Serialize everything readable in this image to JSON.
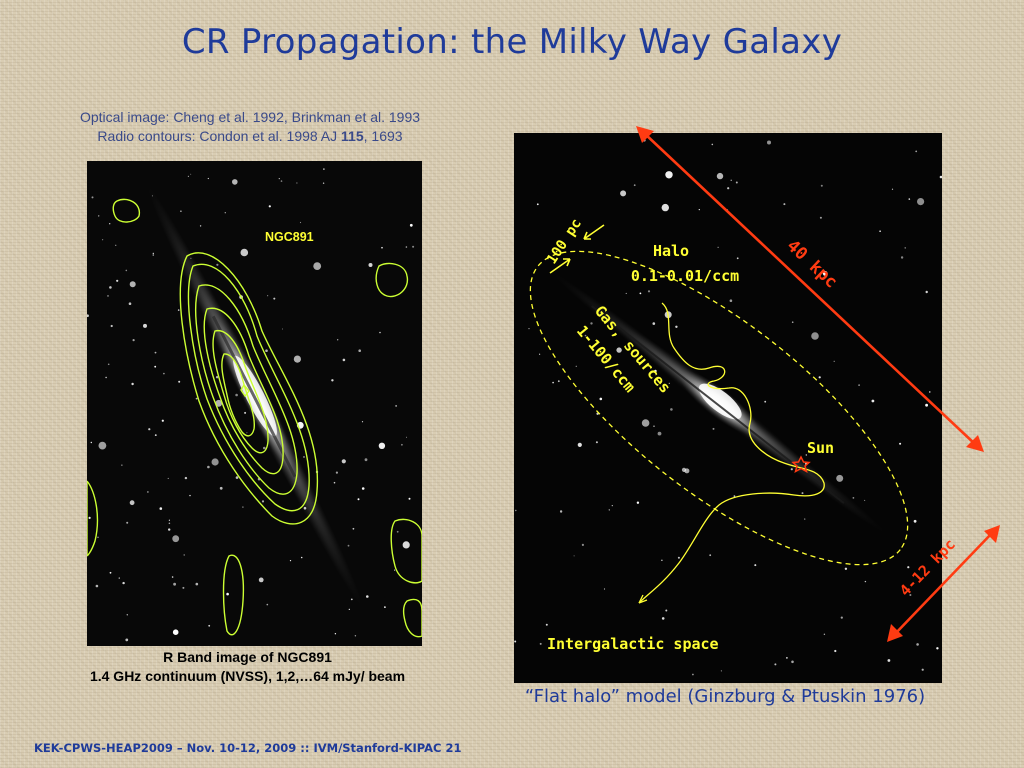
{
  "slide": {
    "title": "CR Propagation: the Milky Way Galaxy",
    "footer": "KEK-CPWS-HEAP2009 – Nov. 10-12, 2009 :: IVM/Stanford-KIPAC  21"
  },
  "credits": {
    "line1": "Optical image: Cheng et al. 1992, Brinkman et al. 1993",
    "line2_prefix": "Radio contours: Condon et al. 1998 AJ ",
    "line2_volume": "115",
    "line2_suffix": ", 1693"
  },
  "left_image": {
    "label": "NGC891",
    "caption_line1": "R Band image of NGC891",
    "caption_line2": "1.4 GHz continuum (NVSS), 1,2,…64 mJy/ beam",
    "contour_color": "#ccff33"
  },
  "right_image": {
    "halo_label_1": "Halo",
    "halo_label_2": "0.1-0.01/ccm",
    "gas_label_1": "Gas, sources",
    "gas_label_2": "1-100/ccm",
    "scale_100pc": "100 pc",
    "scale_40kpc": "40 kpc",
    "scale_4_12kpc": "4-12 kpc",
    "sun_label": "Sun",
    "intergalactic_label": "Intergalactic space",
    "caption": "“Flat halo” model (Ginzburg & Ptuskin 1976)",
    "annotation_color": "#ffff33",
    "arrow_color": "#ff3b12"
  }
}
